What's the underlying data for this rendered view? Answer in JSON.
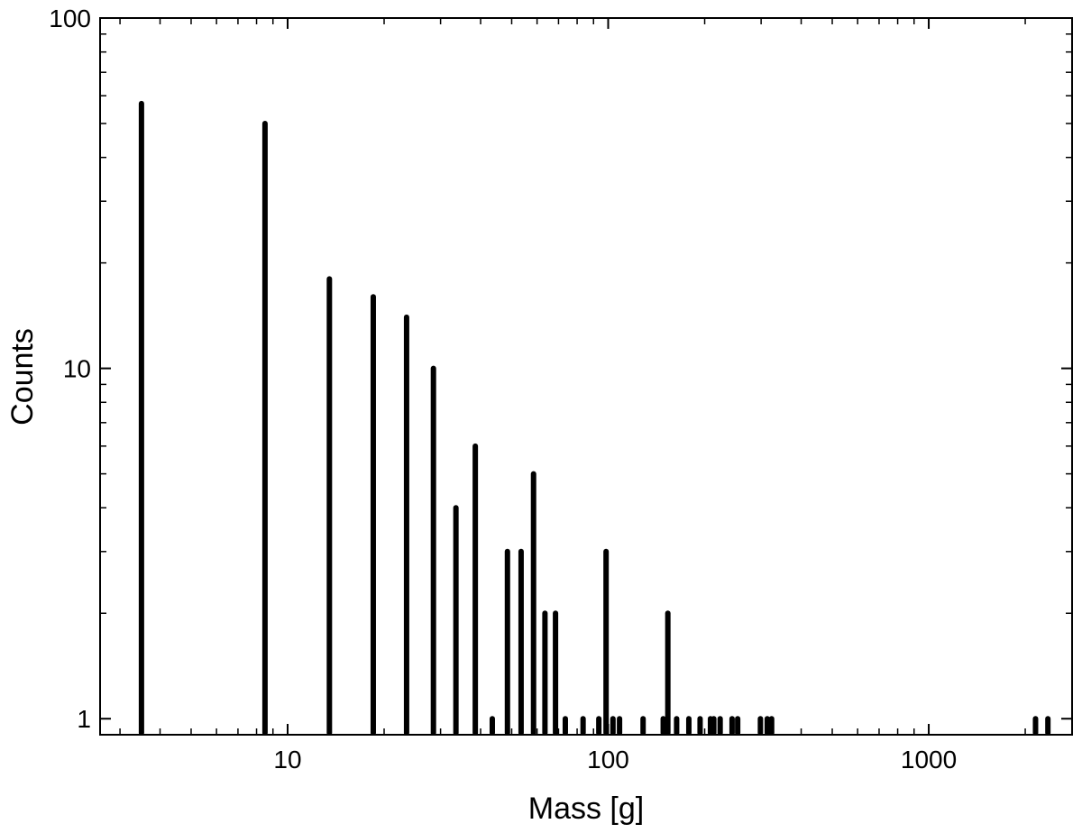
{
  "chart_data": {
    "type": "bar",
    "title": "",
    "xlabel": "Mass [g]",
    "ylabel": "Counts",
    "xscale": "log",
    "yscale": "log",
    "xlim": [
      2.6,
      2800
    ],
    "ylim": [
      0.9,
      100
    ],
    "grid": false,
    "legend": "none",
    "color": "#000000",
    "x_ticks": [
      10,
      100,
      1000
    ],
    "x_tick_labels": [
      "10",
      "100",
      "1000"
    ],
    "y_ticks": [
      1,
      10,
      100
    ],
    "y_tick_labels": [
      "1",
      "10",
      "100"
    ],
    "series": [
      {
        "x": [
          3.5,
          8.5,
          13.5,
          18.5,
          23.5,
          28.5,
          33.5,
          38.5,
          43.5,
          48.5,
          53.5,
          58.5,
          63.5,
          68.5,
          73.5,
          83.5,
          93.5,
          98.5,
          103.5,
          108.5,
          128.5,
          148.5,
          153.5,
          163.5,
          178.5,
          193.5,
          208.5,
          213.5,
          223.5,
          243.5,
          253.5,
          298.5,
          313.5,
          323.5,
          2153.5,
          2353.5
        ],
        "values": [
          57,
          50,
          18,
          16,
          14,
          10,
          4,
          6,
          1,
          3,
          3,
          5,
          2,
          2,
          1,
          1,
          1,
          3,
          1,
          1,
          1,
          1,
          2,
          1,
          1,
          1,
          1,
          1,
          1,
          1,
          1,
          1,
          1,
          1,
          1,
          1
        ]
      }
    ]
  }
}
